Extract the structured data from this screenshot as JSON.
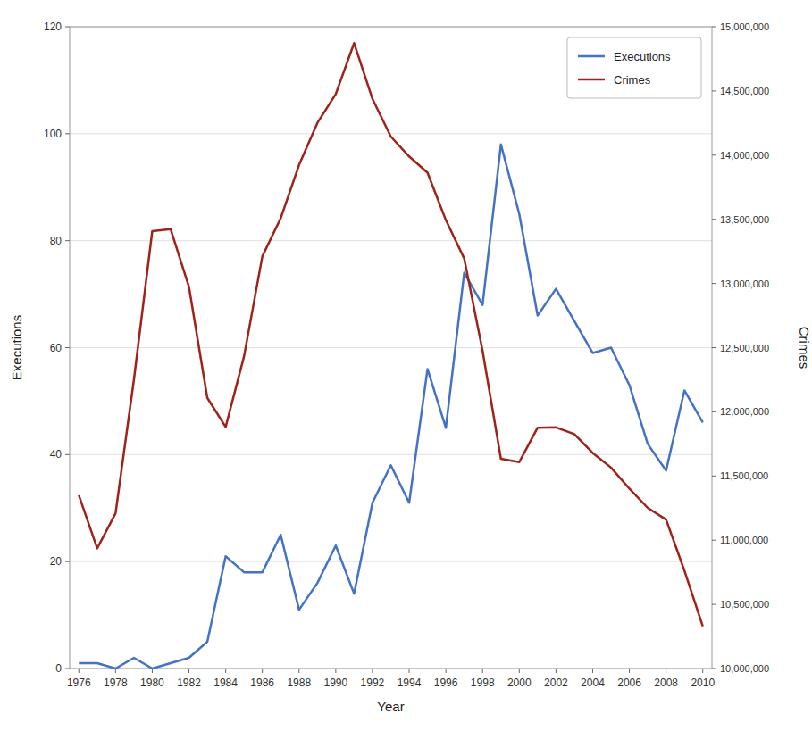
{
  "chart_data": {
    "type": "line",
    "xlabel": "Year",
    "ylabel": "Executions",
    "y2label": "Crimes",
    "x": [
      1976,
      1977,
      1978,
      1979,
      1980,
      1981,
      1982,
      1983,
      1984,
      1985,
      1986,
      1987,
      1988,
      1989,
      1990,
      1991,
      1992,
      1993,
      1994,
      1995,
      1996,
      1997,
      1998,
      1999,
      2000,
      2001,
      2002,
      2003,
      2004,
      2005,
      2006,
      2007,
      2008,
      2009,
      2010
    ],
    "series": [
      {
        "name": "Executions",
        "color": "#4472C4",
        "values": [
          1,
          1,
          0,
          2,
          0,
          1,
          2,
          5,
          21,
          18,
          18,
          25,
          11,
          16,
          23,
          14,
          31,
          38,
          31,
          56,
          45,
          74,
          68,
          98,
          85,
          66,
          71,
          65,
          59,
          60,
          53,
          42,
          37,
          52,
          46
        ]
      },
      {
        "name": "Crimes",
        "color": "#A0231A",
        "axis": "y2",
        "values": [
          11349663,
          10935758,
          11209000,
          12249500,
          13408300,
          13423800,
          12974400,
          12108600,
          11881800,
          12431400,
          13211869,
          13508700,
          13923086,
          14251400,
          14475613,
          14872900,
          14438191,
          14144794,
          13989543,
          13862727,
          13493863,
          13194571,
          12475634,
          11634378,
          11608072,
          11876669,
          11878954,
          11826538,
          11679474,
          11565499,
          11401511,
          11251828,
          11160543,
          10762956,
          10329135
        ]
      }
    ],
    "xlim": [
      1975.5,
      2010.5
    ],
    "xticks": [
      1976,
      1978,
      1980,
      1982,
      1984,
      1986,
      1988,
      1990,
      1992,
      1994,
      1996,
      1998,
      2000,
      2002,
      2004,
      2006,
      2008,
      2010
    ],
    "ylim": [
      0,
      120
    ],
    "yticks": [
      0,
      20,
      40,
      60,
      80,
      100,
      120
    ],
    "y2lim": [
      10000000,
      15000000
    ],
    "y2ticks": [
      {
        "value": 10000000,
        "label": "10,000,000"
      },
      {
        "value": 10500000,
        "label": "10,500,000"
      },
      {
        "value": 11000000,
        "label": "11,000,000"
      },
      {
        "value": 11500000,
        "label": "11,500,000"
      },
      {
        "value": 12000000,
        "label": "12,000,000"
      },
      {
        "value": 12500000,
        "label": "12,500,000"
      },
      {
        "value": 13000000,
        "label": "13,000,000"
      },
      {
        "value": 13500000,
        "label": "13,500,000"
      },
      {
        "value": 14000000,
        "label": "14,000,000"
      },
      {
        "value": 14500000,
        "label": "14,500,000"
      },
      {
        "value": 15000000,
        "label": "15,000,000"
      }
    ],
    "grid": true,
    "legend": "upper-right"
  }
}
